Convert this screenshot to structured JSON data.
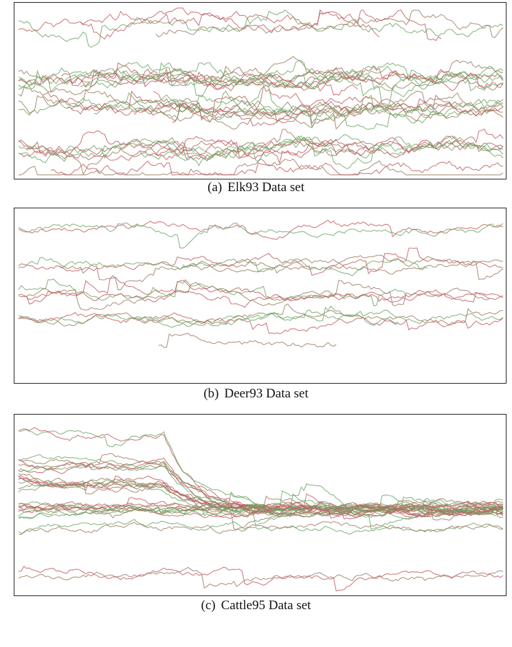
{
  "figures": [
    {
      "id": "elk93",
      "label": "(a)",
      "caption": "Elk93 Data set",
      "chart_data": {
        "type": "line",
        "title": "",
        "xlabel": "",
        "ylabel": "",
        "axes_visible": false,
        "grid": false,
        "colors": [
          "#c05a60",
          "#6aa661",
          "#9a7a60"
        ],
        "series_count": 34
      }
    },
    {
      "id": "deer93",
      "label": "(b)",
      "caption": "Deer93 Data set",
      "chart_data": {
        "type": "line",
        "title": "",
        "xlabel": "",
        "ylabel": "",
        "axes_visible": false,
        "grid": false,
        "colors": [
          "#c05a60",
          "#6aa661",
          "#9a7a60"
        ],
        "series_count": 15
      }
    },
    {
      "id": "cattle95",
      "label": "(c)",
      "caption": "Cattle95 Data set",
      "chart_data": {
        "type": "line",
        "title": "",
        "xlabel": "",
        "ylabel": "",
        "axes_visible": false,
        "grid": false,
        "colors": [
          "#c05a60",
          "#6aa661",
          "#9a7a60"
        ],
        "series_count": 30
      }
    }
  ]
}
